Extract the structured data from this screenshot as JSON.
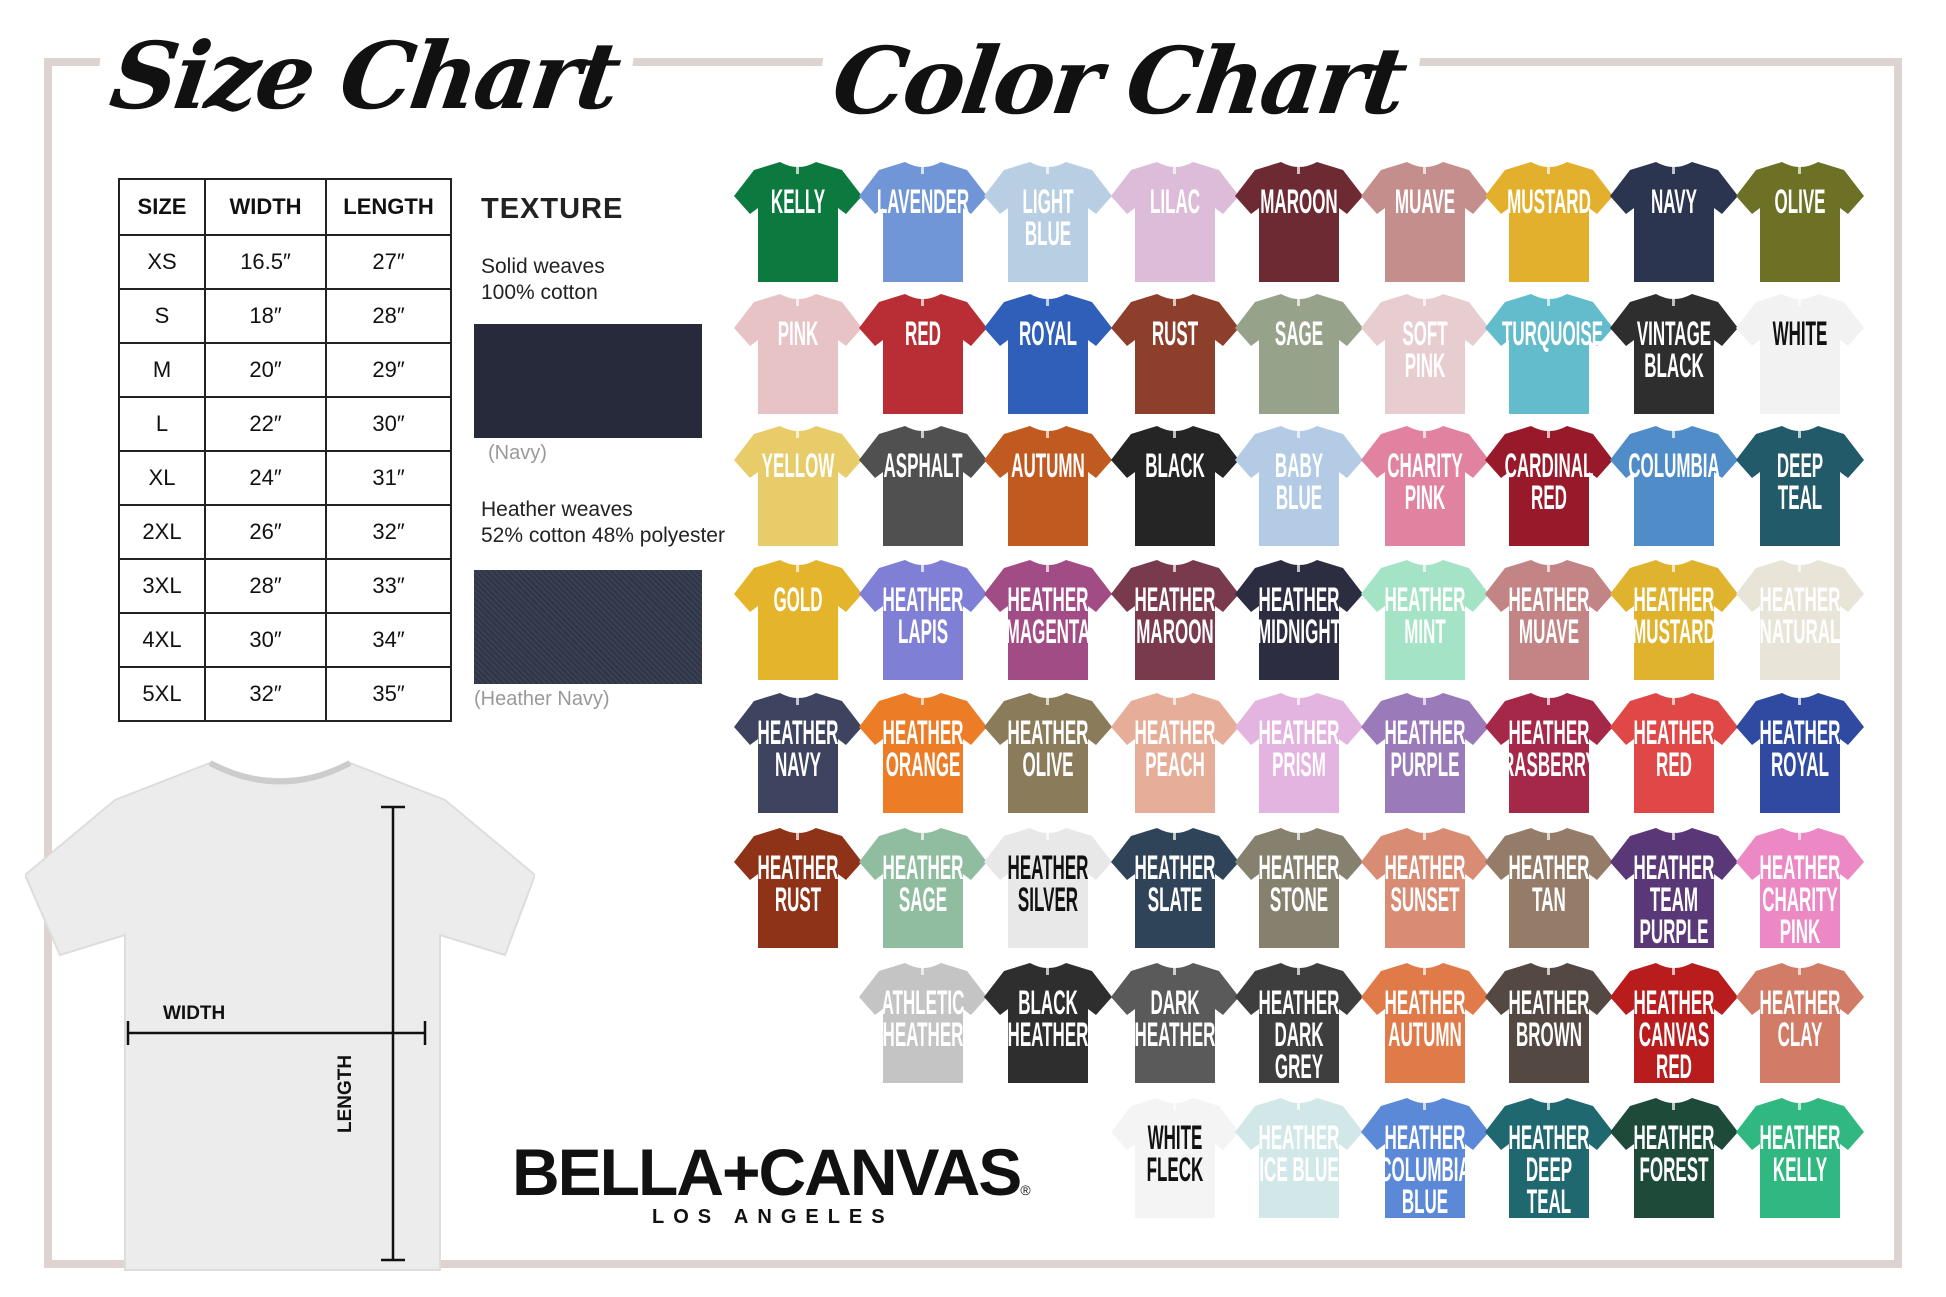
{
  "titles": {
    "size_chart": "Size Chart",
    "color_chart": "Color Chart"
  },
  "size_table": {
    "headers": [
      "SIZE",
      "WIDTH",
      "LENGTH"
    ],
    "rows": [
      [
        "XS",
        "16.5″",
        "27″"
      ],
      [
        "S",
        "18″",
        "28″"
      ],
      [
        "M",
        "20″",
        "29″"
      ],
      [
        "L",
        "22″",
        "30″"
      ],
      [
        "XL",
        "24″",
        "31″"
      ],
      [
        "2XL",
        "26″",
        "32″"
      ],
      [
        "3XL",
        "28″",
        "33″"
      ],
      [
        "4XL",
        "30″",
        "34″"
      ],
      [
        "5XL",
        "32″",
        "35″"
      ]
    ]
  },
  "texture": {
    "heading": "TEXTURE",
    "solid_title": "Solid weaves",
    "solid_desc": "100% cotton",
    "solid_caption": "(Navy)",
    "solid_color": "#262a3a",
    "heather_title": "Heather weaves",
    "heather_desc": "52% cotton 48% polyester",
    "heather_caption": "(Heather Navy)",
    "heather_color": "#2f3546"
  },
  "diagram": {
    "width_label": "WIDTH",
    "length_label": "LENGTH"
  },
  "brand": {
    "name": "BELLA+CANVAS",
    "reg": "®",
    "city": "LOS ANGELES"
  },
  "colors": [
    [
      [
        "KELLY",
        "#0c7a3e"
      ],
      [
        "LAVENDER",
        "#7096d8"
      ],
      [
        "LIGHT\nBLUE",
        "#b8cfe3"
      ],
      [
        "LILAC",
        "#dcbcd8"
      ],
      [
        "MAROON",
        "#6e2a33"
      ],
      [
        "MUAVE",
        "#c48e8c"
      ],
      [
        "MUSTARD",
        "#e2b02c"
      ],
      [
        "NAVY",
        "#2c3550"
      ],
      [
        "OLIVE",
        "#6d7126"
      ]
    ],
    [
      [
        "PINK",
        "#e8c3c6"
      ],
      [
        "RED",
        "#b82e34"
      ],
      [
        "ROYAL",
        "#2f5fb8"
      ],
      [
        "RUST",
        "#8e3f2c"
      ],
      [
        "SAGE",
        "#96a38a"
      ],
      [
        "SOFT\nPINK",
        "#e8cdd0"
      ],
      [
        "TURQUOISE",
        "#62bccb"
      ],
      [
        "VINTAGE\nBLACK",
        "#2e2e2e"
      ],
      [
        "WHITE",
        "#f2f2f2",
        "#111"
      ]
    ],
    [
      [
        "YELLOW",
        "#e8cc6a"
      ],
      [
        "ASPHALT",
        "#505050"
      ],
      [
        "AUTUMN",
        "#c05a20"
      ],
      [
        "BLACK",
        "#252525"
      ],
      [
        "BABY\nBLUE",
        "#b3cbe5"
      ],
      [
        "CHARITY\nPINK",
        "#e082a0"
      ],
      [
        "CARDINAL\nRED",
        "#98192a"
      ],
      [
        "COLUMBIA",
        "#4f8cc8"
      ],
      [
        "DEEP\nTEAL",
        "#235a6a"
      ]
    ],
    [
      [
        "GOLD",
        "#e4b52a"
      ],
      [
        "HEATHER\nLAPIS",
        "#7f7fd6"
      ],
      [
        "HEATHER\nMAGENTA",
        "#a24c86"
      ],
      [
        "HEATHER\nMAROON",
        "#7a3a4e"
      ],
      [
        "HEATHER\nMIDNIGHT",
        "#2c2d40"
      ],
      [
        "HEATHER\nMINT",
        "#a5e3c6"
      ],
      [
        "HEATHER\nMUAVE",
        "#c28484"
      ],
      [
        "HEATHER\nMUSTARD",
        "#dfb32e"
      ],
      [
        "HEATHER\nNATURAL",
        "#e8e4d8"
      ]
    ],
    [
      [
        "HEATHER\nNAVY",
        "#3e4460"
      ],
      [
        "HEATHER\nORANGE",
        "#ec7d26"
      ],
      [
        "HEATHER\nOLIVE",
        "#8a7c5a"
      ],
      [
        "HEATHER\nPEACH",
        "#e6ad98"
      ],
      [
        "HEATHER\nPRISM",
        "#e4b4e0"
      ],
      [
        "HEATHER\nPURPLE",
        "#9a7ab8"
      ],
      [
        "HEATHER\nRASBERRY",
        "#a52848"
      ],
      [
        "HEATHER\nRED",
        "#e04848"
      ],
      [
        "HEATHER\nROYAL",
        "#2f4aa0"
      ]
    ],
    [
      [
        "HEATHER\nRUST",
        "#8e3218"
      ],
      [
        "HEATHER\nSAGE",
        "#90bca0"
      ],
      [
        "HEATHER\nSILVER",
        "#e8e8e8",
        "#111"
      ],
      [
        "HEATHER\nSLATE",
        "#2f4458"
      ],
      [
        "HEATHER\nSTONE",
        "#86806e"
      ],
      [
        "HEATHER\nSUNSET",
        "#d88c74"
      ],
      [
        "HEATHER\nTAN",
        "#947c68"
      ],
      [
        "HEATHER\nTEAM\nPURPLE",
        "#5a3878"
      ],
      [
        "HEATHER\nCHARITY\nPINK",
        "#ec88c4"
      ]
    ],
    [
      null,
      [
        "ATHLETIC\nHEATHER",
        "#c4c4c4"
      ],
      [
        "BLACK\nHEATHER",
        "#2e2e2e"
      ],
      [
        "DARK\nHEATHER",
        "#5a5a5a"
      ],
      [
        "HEATHER\nDARK GREY",
        "#3e3e3e"
      ],
      [
        "HEATHER\nAUTUMN",
        "#e07a48"
      ],
      [
        "HEATHER\nBROWN",
        "#544842"
      ],
      [
        "HEATHER\nCANVAS\nRED",
        "#b81c1c"
      ],
      [
        "HEATHER\nCLAY",
        "#d27c68"
      ]
    ],
    [
      null,
      null,
      null,
      [
        "WHITE\nFLECK",
        "#f4f4f4",
        "#111"
      ],
      [
        "HEATHER\nICE BLUE",
        "#d2e8e8"
      ],
      [
        "HEATHER\nCOLUMBIA\nBLUE",
        "#5c88d8"
      ],
      [
        "HEATHER\nDEEP\nTEAL",
        "#1f6870"
      ],
      [
        "HEATHER\nFOREST",
        "#1e4a3a"
      ],
      [
        "HEATHER\nKELLY",
        "#30b880"
      ]
    ]
  ]
}
